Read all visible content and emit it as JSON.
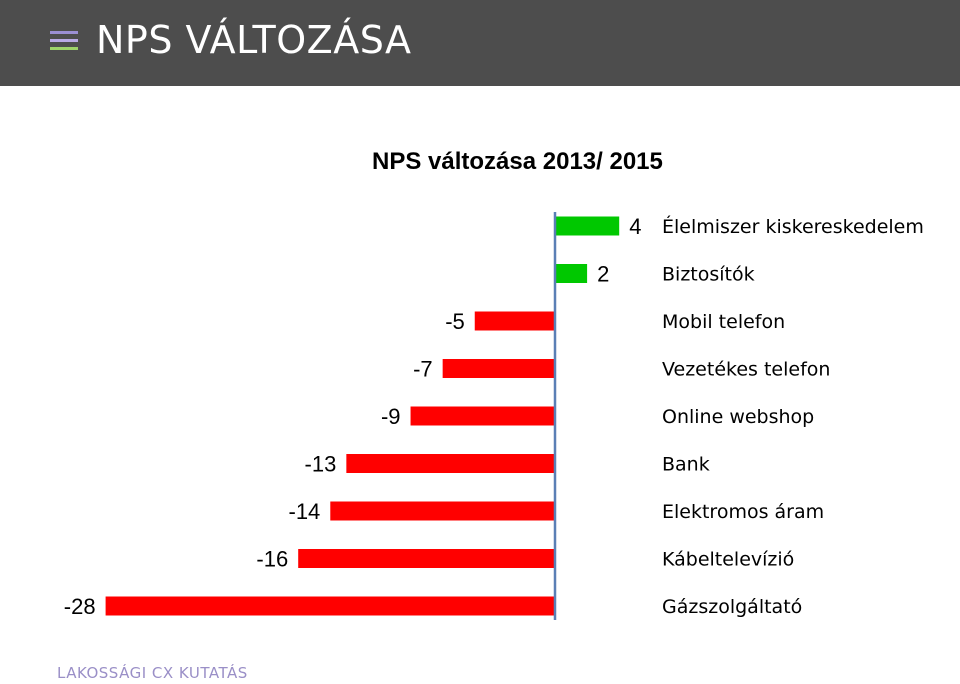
{
  "header": {
    "title": "NPS VÁLTOZÁSA"
  },
  "footer": {
    "text": "LAKOSSÁGI CX KUTATÁS"
  },
  "colors": {
    "positive": "#00c800",
    "negative": "#ff0000",
    "axis": "#5a7fb5"
  },
  "icons": {
    "menu": "menu-icon"
  },
  "chart_data": {
    "type": "bar",
    "orientation": "horizontal",
    "title": "NPS változása 2013/ 2015",
    "categories": [
      "Élelmiszer kiskereskedelem",
      "Biztosítók",
      "Mobil telefon",
      "Vezetékes telefon",
      "Online webshop",
      "Bank",
      "Elektromos áram",
      "Kábeltelevízió",
      "Gázszolgáltató"
    ],
    "values": [
      4,
      2,
      -5,
      -7,
      -9,
      -13,
      -14,
      -16,
      -28
    ],
    "data_labels": [
      "4",
      "2",
      "-5",
      "-7",
      "-9",
      "-13",
      "-14",
      "-16",
      "-28"
    ],
    "xlim": [
      -28,
      4
    ],
    "grid": false,
    "legend": "none"
  }
}
